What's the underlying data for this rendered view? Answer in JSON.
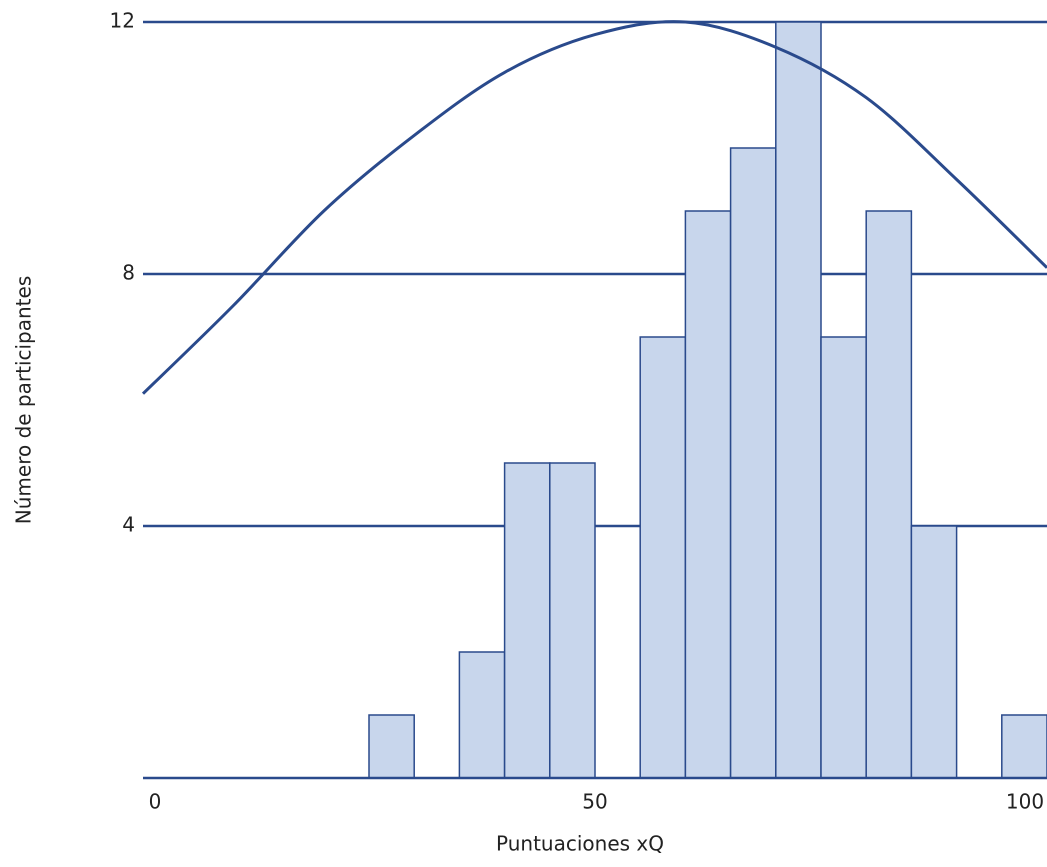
{
  "chart_data": {
    "type": "histogram",
    "x_label": "Puntuaciones xQ",
    "y_label": "Número de participantes",
    "bins": [
      0,
      5,
      10,
      15,
      20,
      25,
      30,
      35,
      40,
      45,
      50,
      55,
      60,
      65,
      70,
      75,
      80,
      85,
      90,
      95,
      100
    ],
    "counts": [
      0,
      0,
      0,
      0,
      0,
      1,
      0,
      2,
      5,
      5,
      0,
      7,
      9,
      10,
      12,
      7,
      9,
      4,
      0,
      1
    ],
    "bar_color": "#c8d6ec",
    "edge_color": "#2a4a8c",
    "curve": {
      "color": "#2a4a8c",
      "x": [
        0,
        10,
        20,
        30,
        40,
        50,
        60,
        70,
        80,
        90,
        100
      ],
      "values": [
        6.1,
        7.5,
        9.0,
        10.2,
        11.2,
        11.8,
        12.0,
        11.6,
        10.8,
        9.5,
        8.1
      ]
    },
    "xlim": [
      0,
      100
    ],
    "ylim": [
      0,
      12
    ],
    "xticks": [
      0,
      50,
      100
    ],
    "yticks": [
      4,
      8,
      12
    ],
    "grid": true
  }
}
